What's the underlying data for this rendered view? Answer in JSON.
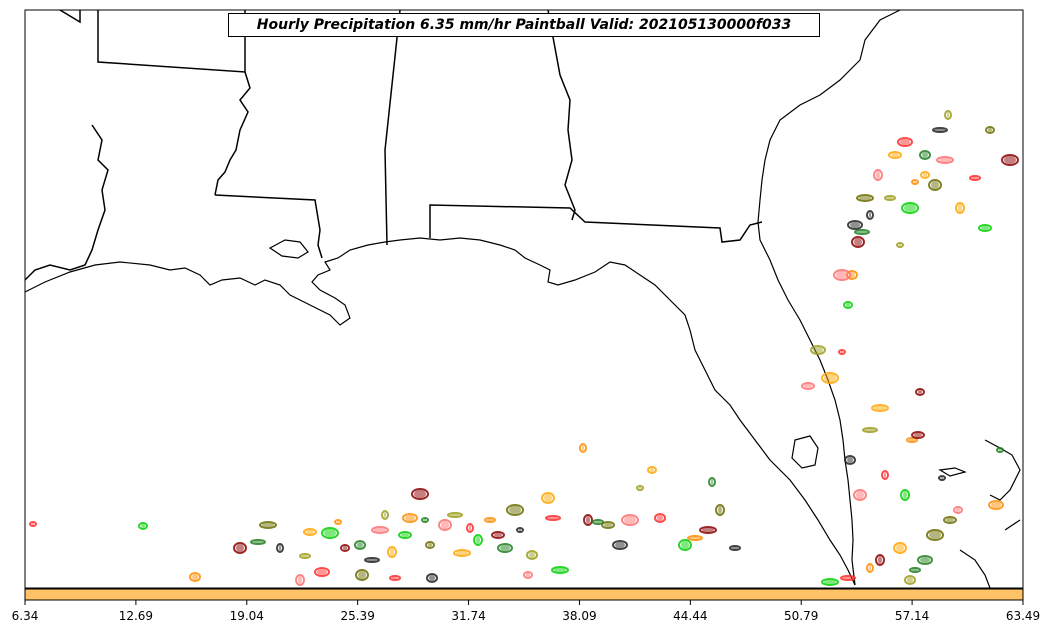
{
  "title": "Hourly Precipitation 6.35 mm/hr Paintball Valid: 202105130000f033",
  "colorbar": {
    "color": "#ffc266",
    "ticks": [
      "6.34",
      "12.69",
      "19.04",
      "25.39",
      "31.74",
      "38.09",
      "44.44",
      "50.79",
      "57.14",
      "63.49"
    ]
  },
  "member_colors": [
    "#ff2a2a",
    "#00d000",
    "#ff8c00",
    "#8b0000",
    "#1e7e1e",
    "#6b6b00",
    "#222222",
    "#ff6f6f",
    "#9c9c1c",
    "#ffa500"
  ]
}
